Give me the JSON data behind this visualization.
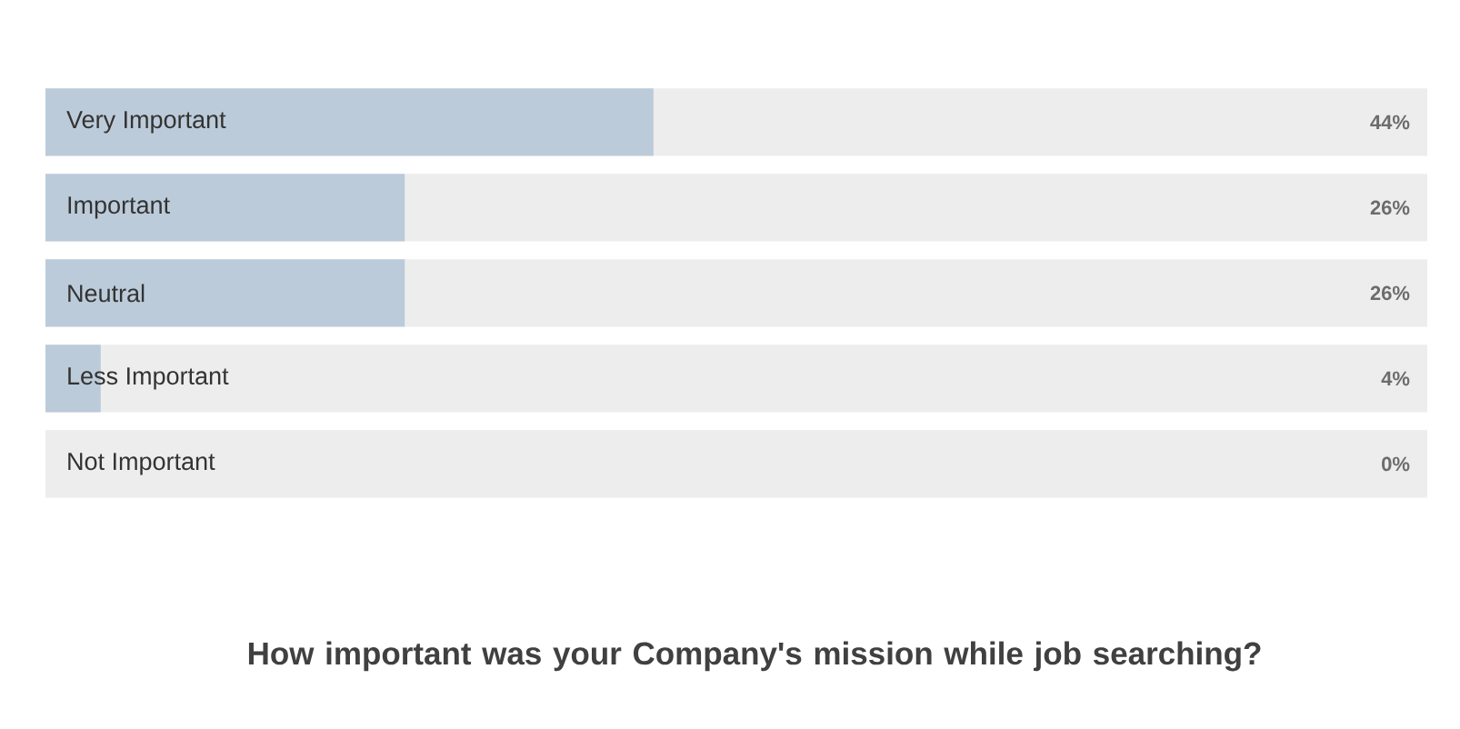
{
  "chart_data": {
    "type": "bar",
    "orientation": "horizontal",
    "title": "How important was your Company's mission while job searching?",
    "categories": [
      "Very Important",
      "Important",
      "Neutral",
      "Less Important",
      "Not Important"
    ],
    "values": [
      44,
      26,
      26,
      4,
      0
    ],
    "value_labels": [
      "44%",
      "26%",
      "26%",
      "4%",
      "0%"
    ],
    "color": "#bccbd9",
    "xlim": [
      0,
      100
    ]
  }
}
